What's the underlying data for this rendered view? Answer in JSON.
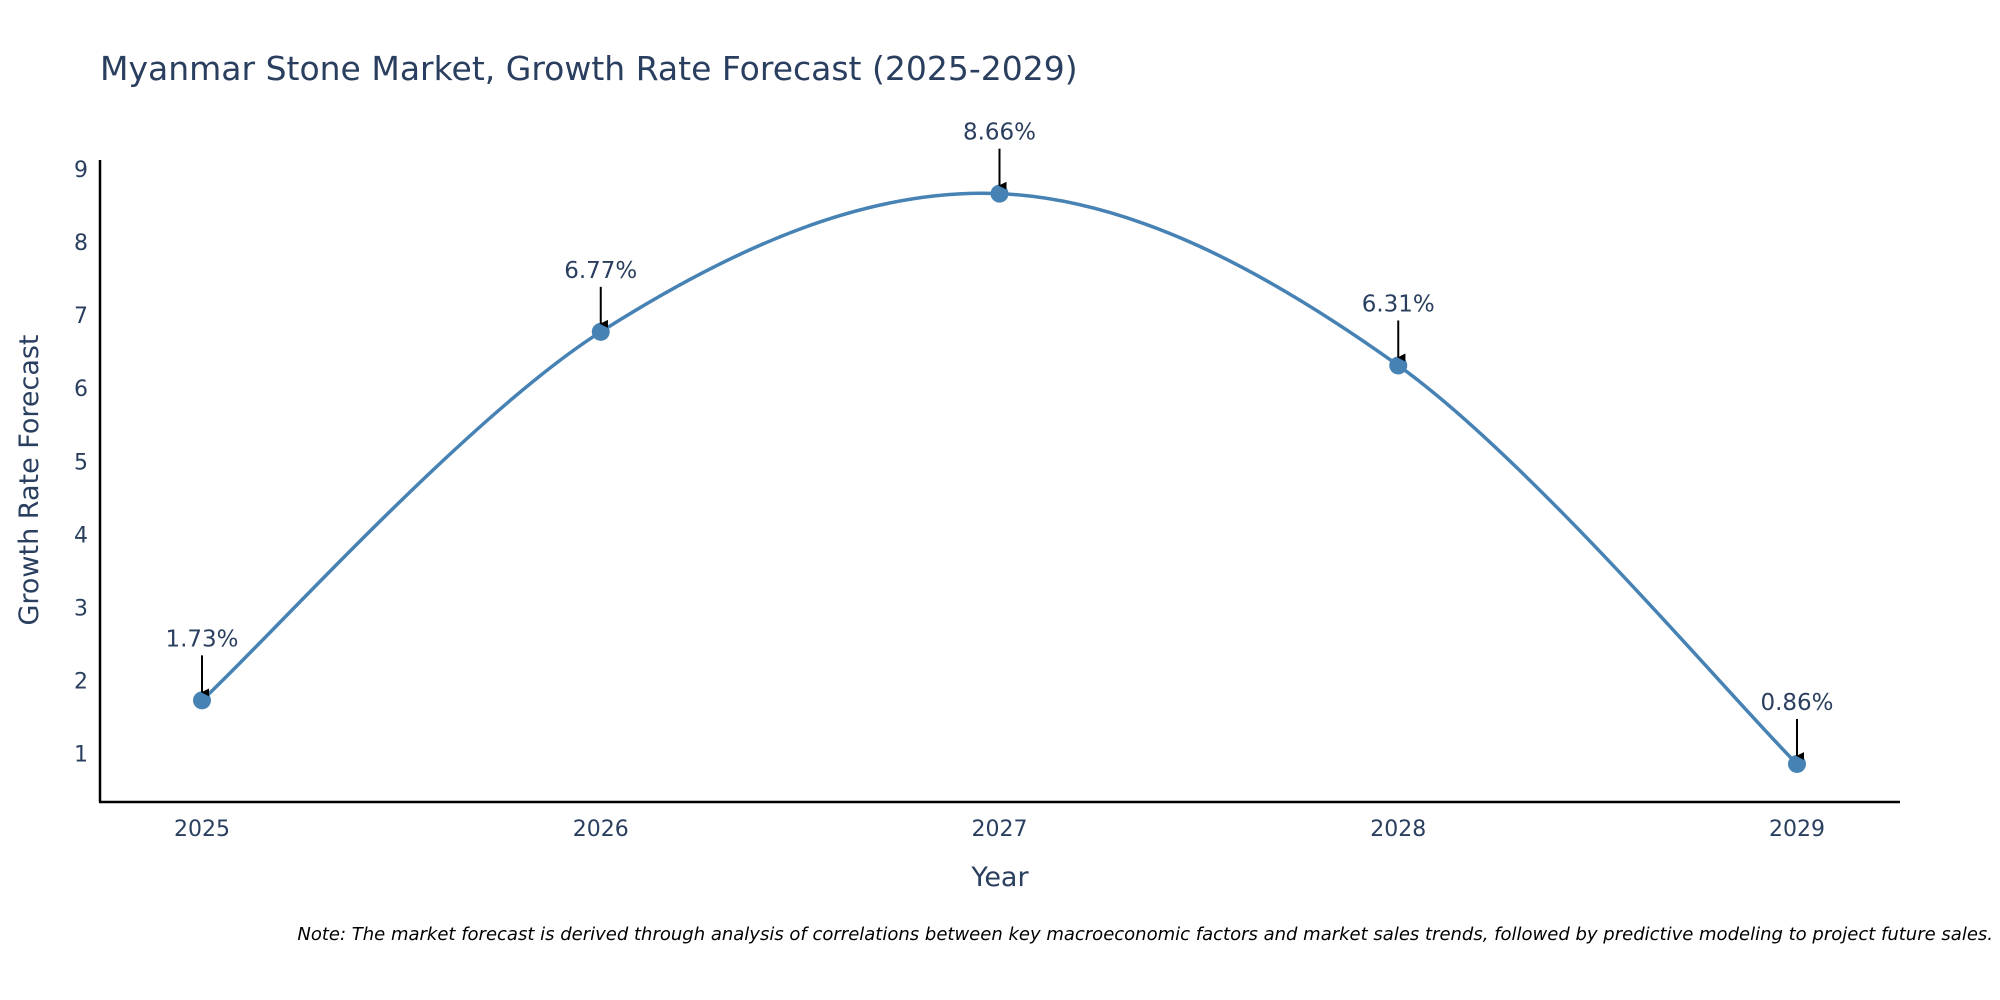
{
  "chart_data": {
    "type": "line",
    "title": "Myanmar Stone Market, Growth Rate Forecast (2025-2029)",
    "xlabel": "Year",
    "ylabel": "Growth Rate Forecast",
    "categories": [
      "2025",
      "2026",
      "2027",
      "2028",
      "2029"
    ],
    "series": [
      {
        "name": "Growth Rate Forecast",
        "values": [
          1.73,
          6.77,
          8.66,
          6.31,
          0.86
        ],
        "labels": [
          "1.73%",
          "6.77%",
          "8.66%",
          "6.31%",
          "0.86%"
        ]
      }
    ],
    "yticks": [
      "1",
      "2",
      "3",
      "4",
      "5",
      "6",
      "7",
      "8",
      "9"
    ],
    "ylim": [
      0.34,
      9.12
    ],
    "line_shape": "spline",
    "grid": false,
    "legend": "none",
    "note": "Note: The market forecast is derived through analysis of correlations between key macroeconomic factors and market sales trends, followed by predictive modeling to project future sales.",
    "colors": {
      "line": "#4682b4",
      "marker": "#4682b4",
      "text": "#2a3f5f",
      "axis": "#000000",
      "arrow": "#000000"
    }
  }
}
